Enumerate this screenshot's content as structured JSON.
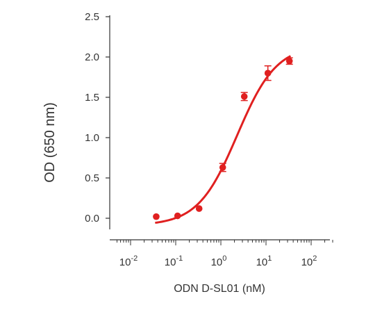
{
  "chart_data": {
    "type": "scatter",
    "xlabel": "ODN D-SL01 (nM)",
    "ylabel": "OD (650 nm)",
    "xscale": "log",
    "xlim": [
      0.005,
      300
    ],
    "ylim": [
      -0.2,
      2.5
    ],
    "yticks": [
      "0.0",
      "0.5",
      "1.0",
      "1.5",
      "2.0",
      "2.5"
    ],
    "xticks": [
      {
        "value": 0.01,
        "base": "10",
        "exp": "-2"
      },
      {
        "value": 0.1,
        "base": "10",
        "exp": "-1"
      },
      {
        "value": 1,
        "base": "10",
        "exp": "0"
      },
      {
        "value": 10,
        "base": "10",
        "exp": "1"
      },
      {
        "value": 100,
        "base": "10",
        "exp": "2"
      }
    ],
    "grid": false,
    "colors": {
      "series": "#e02020",
      "axis": "#333333",
      "text": "#333333"
    },
    "series": [
      {
        "points": [
          {
            "x": 0.037,
            "y": 0.02,
            "err": 0
          },
          {
            "x": 0.11,
            "y": 0.03,
            "err": 0
          },
          {
            "x": 0.33,
            "y": 0.12,
            "err": 0
          },
          {
            "x": 1.1,
            "y": 0.63,
            "err": 0.05
          },
          {
            "x": 3.3,
            "y": 1.51,
            "err": 0.05
          },
          {
            "x": 11,
            "y": 1.8,
            "err": 0.09
          },
          {
            "x": 33,
            "y": 1.95,
            "err": 0.04
          }
        ],
        "fit": {
          "bottom": -0.09,
          "top": 2.15,
          "ec50": 2.3,
          "hill": 1.0
        }
      }
    ]
  }
}
